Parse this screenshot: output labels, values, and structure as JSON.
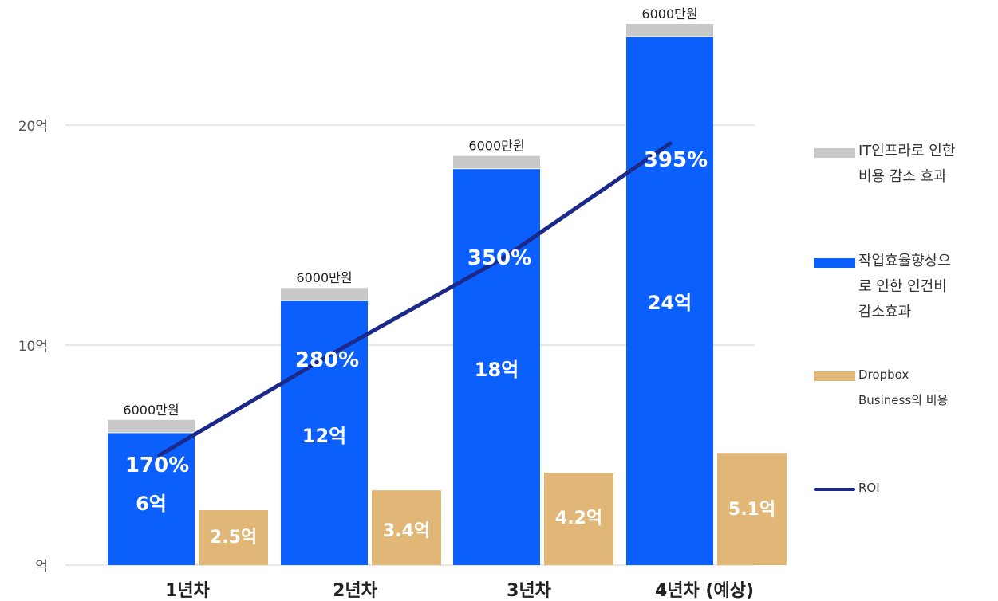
{
  "chart_data": {
    "type": "bar",
    "categories": [
      "1년차",
      "2년차",
      "3년차",
      "4년차 (예상)"
    ],
    "y_ticks": [
      {
        "value": 0,
        "label": "억"
      },
      {
        "value": 10,
        "label": "10억"
      },
      {
        "value": 20,
        "label": "20억"
      }
    ],
    "ylim": [
      0,
      25
    ],
    "grid": true,
    "legend_position": "right",
    "series": [
      {
        "name": "IT인프라로 인한 비용 감소 효과",
        "type": "stacked-bar",
        "color": "#c8c8c8",
        "values": [
          0.6,
          0.6,
          0.6,
          0.6
        ],
        "labels": [
          "6000만원",
          "6000만원",
          "6000만원",
          "6000만원"
        ]
      },
      {
        "name": "작업효율향상으로 인한 인건비 감소효과",
        "type": "stacked-bar",
        "color": "#0a5ffd",
        "values": [
          6,
          12,
          18,
          24
        ],
        "labels": [
          "6억",
          "12억",
          "18억",
          "24억"
        ]
      },
      {
        "name": "Dropbox Business의 비용",
        "type": "bar",
        "color": "#e0b777",
        "values": [
          2.5,
          3.4,
          4.2,
          5.1
        ],
        "labels": [
          "2.5억",
          "3.4억",
          "4.2억",
          "5.1억"
        ]
      },
      {
        "name": "ROI",
        "type": "line",
        "color": "#1b2a8a",
        "values": [
          170,
          280,
          350,
          395
        ],
        "labels": [
          "170%",
          "280%",
          "350%",
          "395%"
        ]
      }
    ]
  },
  "legend": {
    "items": [
      {
        "label": "IT인프라로 인한\n비용 감소 효과",
        "color": "#c8c8c8",
        "kind": "swatch"
      },
      {
        "label": "작업효율향상으\n로 인한 인건비\n감소효과",
        "color": "#0a5ffd",
        "kind": "swatch"
      },
      {
        "label": "Dropbox\nBusiness의 비용",
        "color": "#e0b777",
        "kind": "swatch"
      },
      {
        "label": "ROI",
        "color": "#1b2a8a",
        "kind": "line"
      }
    ]
  }
}
